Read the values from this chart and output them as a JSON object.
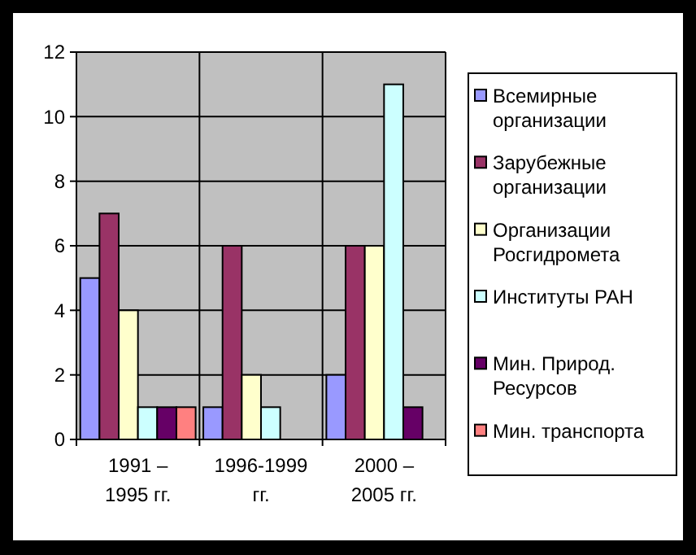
{
  "chart_data": {
    "type": "bar",
    "categories": [
      "1991 – 1995 гг.",
      "1996-1999 гг.",
      "2000 – 2005 гг."
    ],
    "series": [
      {
        "name": "Всемирные организации",
        "color": "#9999ff",
        "values": [
          5,
          1,
          2
        ]
      },
      {
        "name": "Зарубежные организации",
        "color": "#993366",
        "values": [
          7,
          6,
          6
        ]
      },
      {
        "name": "Организации Росгидромета",
        "color": "#ffffcc",
        "values": [
          4,
          2,
          6
        ]
      },
      {
        "name": "Институты РАН",
        "color": "#ccffff",
        "values": [
          1,
          1,
          11
        ]
      },
      {
        "name": "Мин. Природ. Ресурсов",
        "color": "#660066",
        "values": [
          1,
          null,
          1
        ]
      },
      {
        "name": "Мин. транспорта",
        "color": "#ff8080",
        "values": [
          1,
          null,
          null
        ]
      }
    ],
    "ylim": [
      0,
      12
    ],
    "yticks": [
      0,
      2,
      4,
      6,
      8,
      10,
      12
    ],
    "grid": true,
    "legend": "right"
  }
}
